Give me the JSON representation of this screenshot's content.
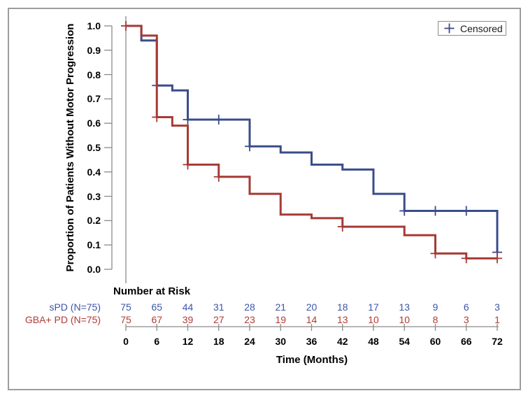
{
  "legend": {
    "label": "Censored",
    "marker_icon": "plus-icon",
    "marker_color": "#3A4C8C"
  },
  "at_risk_table": {
    "header": "Number at Risk",
    "rows": [
      {
        "label": "sPD (N=75)",
        "color": "#3C55A8",
        "values": [
          75,
          65,
          44,
          31,
          28,
          21,
          20,
          18,
          17,
          13,
          9,
          6,
          3
        ]
      },
      {
        "label": "GBA+ PD (N=75)",
        "color": "#B23A35",
        "values": [
          75,
          67,
          39,
          27,
          23,
          19,
          14,
          13,
          10,
          10,
          8,
          3,
          1
        ]
      }
    ]
  },
  "chart_data": {
    "type": "line",
    "subtype": "kaplan-meier-step-survival",
    "title": "",
    "xlabel": "Time (Months)",
    "ylabel": "Proportion of Patients Without Motor Progression",
    "xlim": [
      0,
      72
    ],
    "ylim": [
      0.0,
      1.0
    ],
    "grid": false,
    "legend_position": "top-right",
    "x_ticks": [
      0,
      6,
      12,
      18,
      24,
      30,
      36,
      42,
      48,
      54,
      60,
      66,
      72
    ],
    "y_ticks": [
      0.0,
      0.1,
      0.2,
      0.3,
      0.4,
      0.5,
      0.6,
      0.7,
      0.8,
      0.9,
      1.0
    ],
    "series": [
      {
        "id": "spd",
        "name": "sPD (N=75)",
        "color": "#3A4C8C",
        "steps": [
          [
            0,
            1.0
          ],
          [
            3,
            0.94
          ],
          [
            6,
            0.755
          ],
          [
            9,
            0.735
          ],
          [
            12,
            0.615
          ],
          [
            24,
            0.505
          ],
          [
            30,
            0.48
          ],
          [
            36,
            0.43
          ],
          [
            42,
            0.41
          ],
          [
            48,
            0.31
          ],
          [
            54,
            0.24
          ],
          [
            72,
            0.07
          ]
        ],
        "censored": [
          [
            6,
            0.755
          ],
          [
            12,
            0.615
          ],
          [
            18,
            0.615
          ],
          [
            24,
            0.505
          ],
          [
            54,
            0.24
          ],
          [
            60,
            0.24
          ],
          [
            66,
            0.24
          ],
          [
            72,
            0.07
          ]
        ]
      },
      {
        "id": "gba-pd",
        "name": "GBA+ PD (N=75)",
        "color": "#A63A35",
        "steps": [
          [
            0,
            1.0
          ],
          [
            3,
            0.96
          ],
          [
            6,
            0.625
          ],
          [
            9,
            0.59
          ],
          [
            12,
            0.43
          ],
          [
            18,
            0.38
          ],
          [
            24,
            0.31
          ],
          [
            30,
            0.225
          ],
          [
            36,
            0.21
          ],
          [
            42,
            0.175
          ],
          [
            54,
            0.14
          ],
          [
            60,
            0.065
          ],
          [
            66,
            0.045
          ],
          [
            72,
            0.045
          ]
        ],
        "censored": [
          [
            0,
            1.0
          ],
          [
            6,
            0.625
          ],
          [
            12,
            0.43
          ],
          [
            18,
            0.38
          ],
          [
            42,
            0.175
          ],
          [
            60,
            0.065
          ],
          [
            66,
            0.045
          ],
          [
            72,
            0.045
          ]
        ]
      }
    ]
  }
}
